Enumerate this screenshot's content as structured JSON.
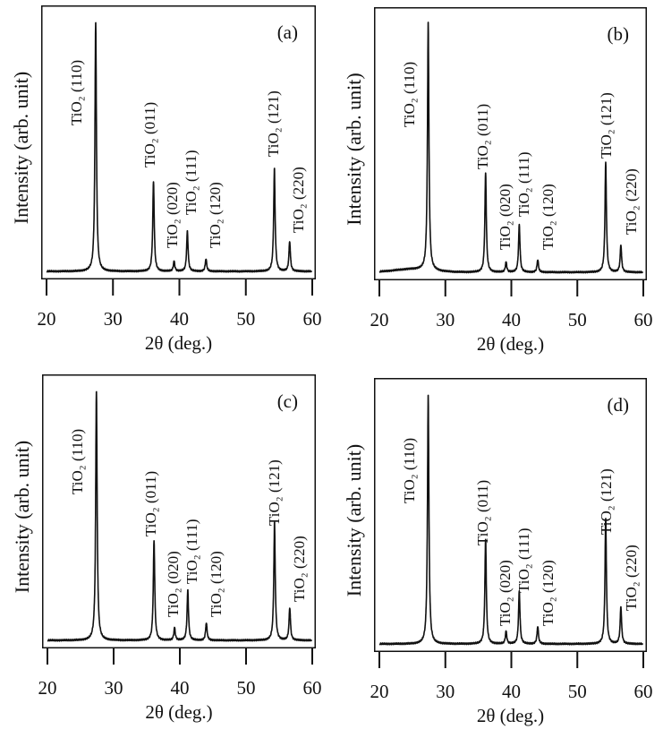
{
  "chart_data": [
    {
      "type": "line",
      "panel_label": "(a)",
      "xlabel": "2θ (deg.)",
      "ylabel": "Intensity (arb. unit)",
      "xlim": [
        20,
        60
      ],
      "xticks": [
        "20",
        "30",
        "40",
        "50",
        "60"
      ],
      "grid": false,
      "peaks": [
        {
          "label": "TiO₂ (110)",
          "two_theta": 27.4,
          "intensity": 100
        },
        {
          "label": "TiO₂ (011)",
          "two_theta": 36.1,
          "intensity": 36
        },
        {
          "label": "TiO₂ (020)",
          "two_theta": 39.2,
          "intensity": 4
        },
        {
          "label": "TiO₂ (111)",
          "two_theta": 41.2,
          "intensity": 16
        },
        {
          "label": "TiO₂ (120)",
          "two_theta": 44.0,
          "intensity": 5
        },
        {
          "label": "TiO₂ (121)",
          "two_theta": 54.3,
          "intensity": 41
        },
        {
          "label": "TiO₂ (220)",
          "two_theta": 56.6,
          "intensity": 12
        }
      ]
    },
    {
      "type": "line",
      "panel_label": "(b)",
      "xlabel": "2θ (deg.)",
      "ylabel": "Intensity (arb. unit)",
      "xlim": [
        20,
        60
      ],
      "xticks": [
        "20",
        "30",
        "40",
        "50",
        "60"
      ],
      "grid": false,
      "peaks": [
        {
          "label": "TiO₂ (110)",
          "two_theta": 27.4,
          "intensity": 100
        },
        {
          "label": "TiO₂ (011)",
          "two_theta": 36.1,
          "intensity": 40
        },
        {
          "label": "TiO₂ (020)",
          "two_theta": 39.2,
          "intensity": 4
        },
        {
          "label": "TiO₂ (111)",
          "two_theta": 41.2,
          "intensity": 19
        },
        {
          "label": "TiO₂ (120)",
          "two_theta": 44.0,
          "intensity": 5
        },
        {
          "label": "TiO₂ (121)",
          "two_theta": 54.3,
          "intensity": 44
        },
        {
          "label": "TiO₂ (220)",
          "two_theta": 56.6,
          "intensity": 11
        }
      ]
    },
    {
      "type": "line",
      "panel_label": "(c)",
      "xlabel": "2θ (deg.)",
      "ylabel": "Intensity (arb. unit)",
      "xlim": [
        20,
        60
      ],
      "xticks": [
        "20",
        "30",
        "40",
        "50",
        "60"
      ],
      "grid": false,
      "peaks": [
        {
          "label": "TiO₂ (110)",
          "two_theta": 27.4,
          "intensity": 100
        },
        {
          "label": "TiO₂ (011)",
          "two_theta": 36.1,
          "intensity": 40
        },
        {
          "label": "TiO₂ (020)",
          "two_theta": 39.2,
          "intensity": 5
        },
        {
          "label": "TiO₂ (111)",
          "two_theta": 41.2,
          "intensity": 20
        },
        {
          "label": "TiO₂ (120)",
          "two_theta": 44.0,
          "intensity": 7
        },
        {
          "label": "TiO₂ (121)",
          "two_theta": 54.3,
          "intensity": 47
        },
        {
          "label": "TiO₂ (220)",
          "two_theta": 56.6,
          "intensity": 13
        }
      ]
    },
    {
      "type": "line",
      "panel_label": "(d)",
      "xlabel": "2θ (deg.)",
      "ylabel": "Intensity (arb. unit)",
      "xlim": [
        20,
        60
      ],
      "xticks": [
        "20",
        "30",
        "40",
        "50",
        "60"
      ],
      "grid": false,
      "peaks": [
        {
          "label": "TiO₂ (110)",
          "two_theta": 27.4,
          "intensity": 100
        },
        {
          "label": "TiO₂ (011)",
          "two_theta": 36.1,
          "intensity": 42
        },
        {
          "label": "TiO₂ (020)",
          "two_theta": 39.2,
          "intensity": 5
        },
        {
          "label": "TiO₂ (111)",
          "two_theta": 41.2,
          "intensity": 21
        },
        {
          "label": "TiO₂ (120)",
          "two_theta": 44.0,
          "intensity": 7
        },
        {
          "label": "TiO₂ (121)",
          "two_theta": 54.3,
          "intensity": 50
        },
        {
          "label": "TiO₂ (220)",
          "two_theta": 56.6,
          "intensity": 15
        }
      ]
    }
  ]
}
